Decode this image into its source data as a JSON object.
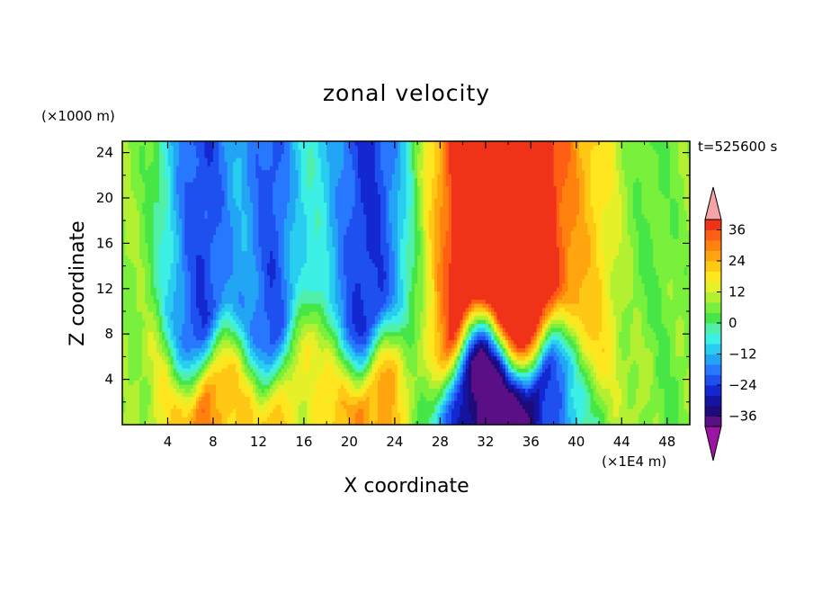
{
  "chart_data": {
    "type": "heatmap",
    "title": "zonal velocity",
    "xlabel": "X coordinate",
    "ylabel": "Z coordinate",
    "x_unit": "(×1E4 m)",
    "y_unit": "(×1000 m)",
    "time_label": "t=525600 s",
    "xlim": [
      0,
      50
    ],
    "ylim": [
      0,
      25
    ],
    "x_ticks": [
      4,
      8,
      12,
      16,
      20,
      24,
      28,
      32,
      36,
      40,
      44,
      48
    ],
    "y_ticks": [
      4,
      8,
      12,
      16,
      20,
      24
    ],
    "x_tick_labels": [
      "4",
      "8",
      "12",
      "16",
      "20",
      "24",
      "28",
      "32",
      "36",
      "40",
      "44",
      "48"
    ],
    "y_tick_labels": [
      "4",
      "8",
      "12",
      "16",
      "20",
      "24"
    ],
    "colorbar": {
      "min": -40,
      "max": 40,
      "step": 4,
      "tick_values": [
        36,
        24,
        12,
        0,
        -12,
        -24,
        -36
      ],
      "tick_labels": [
        "36",
        "24",
        "12",
        "0",
        "−12",
        "−24",
        "−36"
      ],
      "colors": [
        "#5a0f87",
        "#1e0a78",
        "#1414a0",
        "#1428d2",
        "#1e50f0",
        "#2878ff",
        "#23a5f5",
        "#28cdf0",
        "#3cf0e6",
        "#50f0aa",
        "#46e646",
        "#78f03c",
        "#b4f032",
        "#e6f028",
        "#ffe61e",
        "#ffc814",
        "#ffa50f",
        "#ff820f",
        "#ff5f14",
        "#f03219"
      ],
      "over_color": "#f5a5a5",
      "under_color": "#9b14a5"
    },
    "features": [
      {
        "x": 7,
        "z": 15,
        "value": -30
      },
      {
        "x": 13,
        "z": 16,
        "value": -28
      },
      {
        "x": 22,
        "z": 19,
        "value": -36
      },
      {
        "x": 33,
        "z": 19,
        "value": 36
      },
      {
        "x": 33,
        "z": 1.5,
        "value": -36
      },
      {
        "x": 7,
        "z": 1,
        "value": 28
      },
      {
        "x": 24,
        "z": 1,
        "value": 24
      }
    ]
  }
}
